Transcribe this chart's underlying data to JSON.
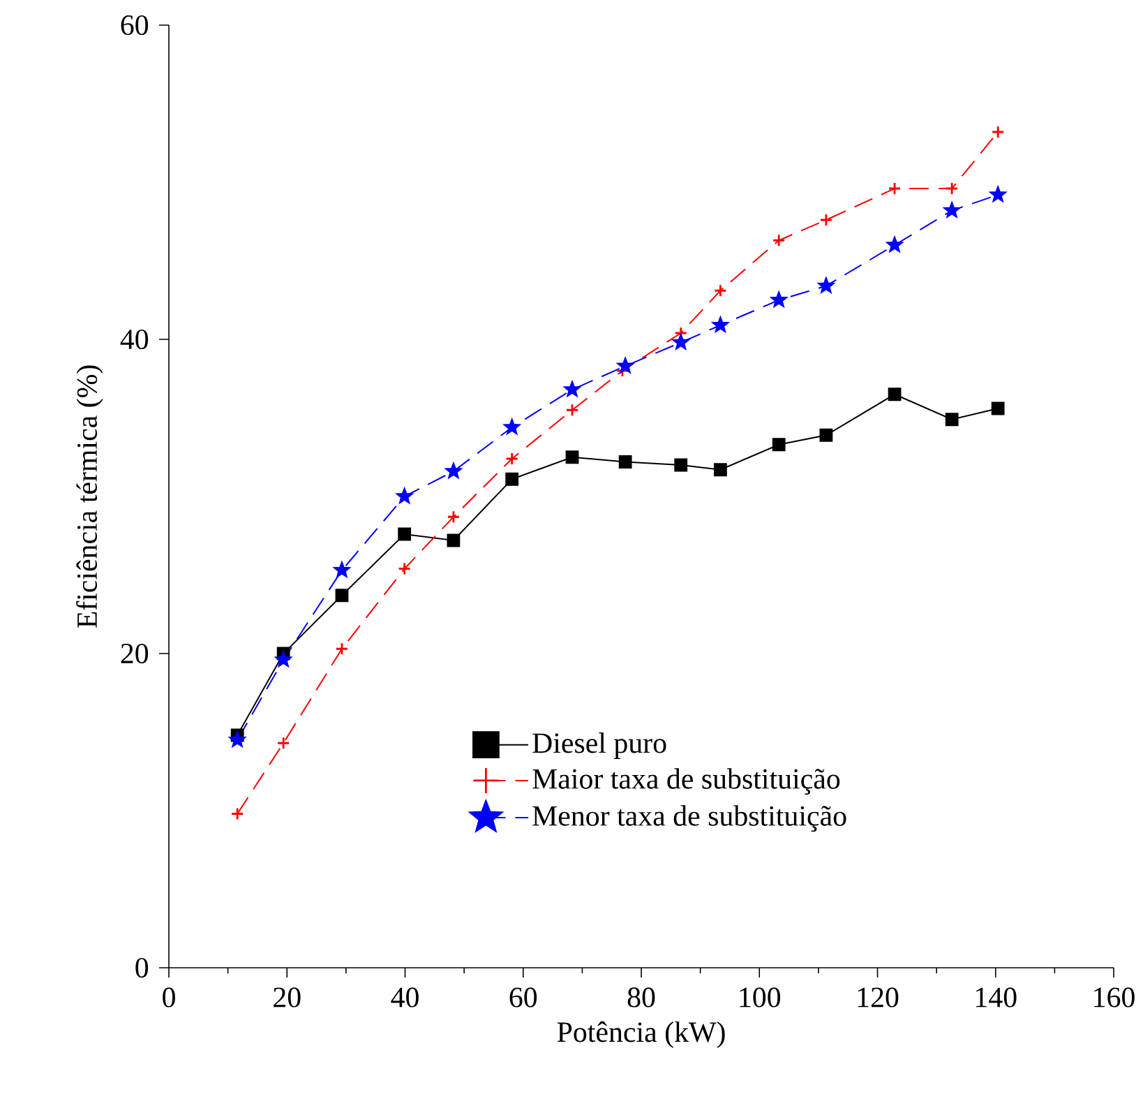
{
  "chart_data": {
    "type": "line",
    "xlabel": "Potência (kW)",
    "ylabel": "Eficiência térmica (%)",
    "xlim": [
      0,
      160
    ],
    "xticks": [
      0,
      20,
      40,
      60,
      80,
      100,
      120,
      140,
      160
    ],
    "ylim": [
      0,
      60
    ],
    "yticks": [
      0,
      20,
      40,
      60
    ],
    "grid": false,
    "legend": "bottom",
    "series": [
      {
        "name": "Diesel puro",
        "color": "#000000",
        "marker": "square",
        "line_style": "solid",
        "x": [
          11.6,
          19.4,
          29.3,
          39.9,
          48.2,
          58.1,
          68.3,
          77.3,
          86.7,
          93.4,
          103.3,
          111.3,
          122.9,
          132.6,
          140.4
        ],
        "values": [
          14.8,
          20.0,
          23.7,
          27.6,
          27.2,
          31.1,
          32.5,
          32.2,
          32.0,
          31.7,
          33.3,
          33.9,
          36.5,
          34.9,
          35.6
        ]
      },
      {
        "name": "Maior taxa de substituição",
        "color": "#ff0000",
        "marker": "cross",
        "line_style": "dashed",
        "x": [
          11.6,
          19.4,
          29.3,
          39.9,
          48.2,
          58.1,
          68.3,
          76.8,
          86.7,
          93.4,
          103.3,
          111.3,
          122.9,
          132.6,
          140.4
        ],
        "values": [
          9.8,
          14.3,
          20.3,
          25.4,
          28.7,
          32.4,
          35.5,
          38.0,
          40.4,
          43.1,
          46.3,
          47.6,
          49.6,
          49.6,
          53.2
        ]
      },
      {
        "name": "Menor taxa de substituição",
        "color": "#0000ff",
        "marker": "star",
        "line_style": "dashed",
        "x": [
          11.6,
          19.4,
          29.3,
          39.9,
          48.2,
          58.1,
          68.3,
          77.3,
          86.7,
          93.4,
          103.3,
          111.3,
          122.9,
          132.6,
          140.4
        ],
        "values": [
          14.5,
          19.6,
          25.3,
          30.0,
          31.6,
          34.4,
          36.8,
          38.3,
          39.8,
          40.9,
          42.5,
          43.4,
          46.0,
          48.2,
          49.2
        ]
      }
    ]
  }
}
